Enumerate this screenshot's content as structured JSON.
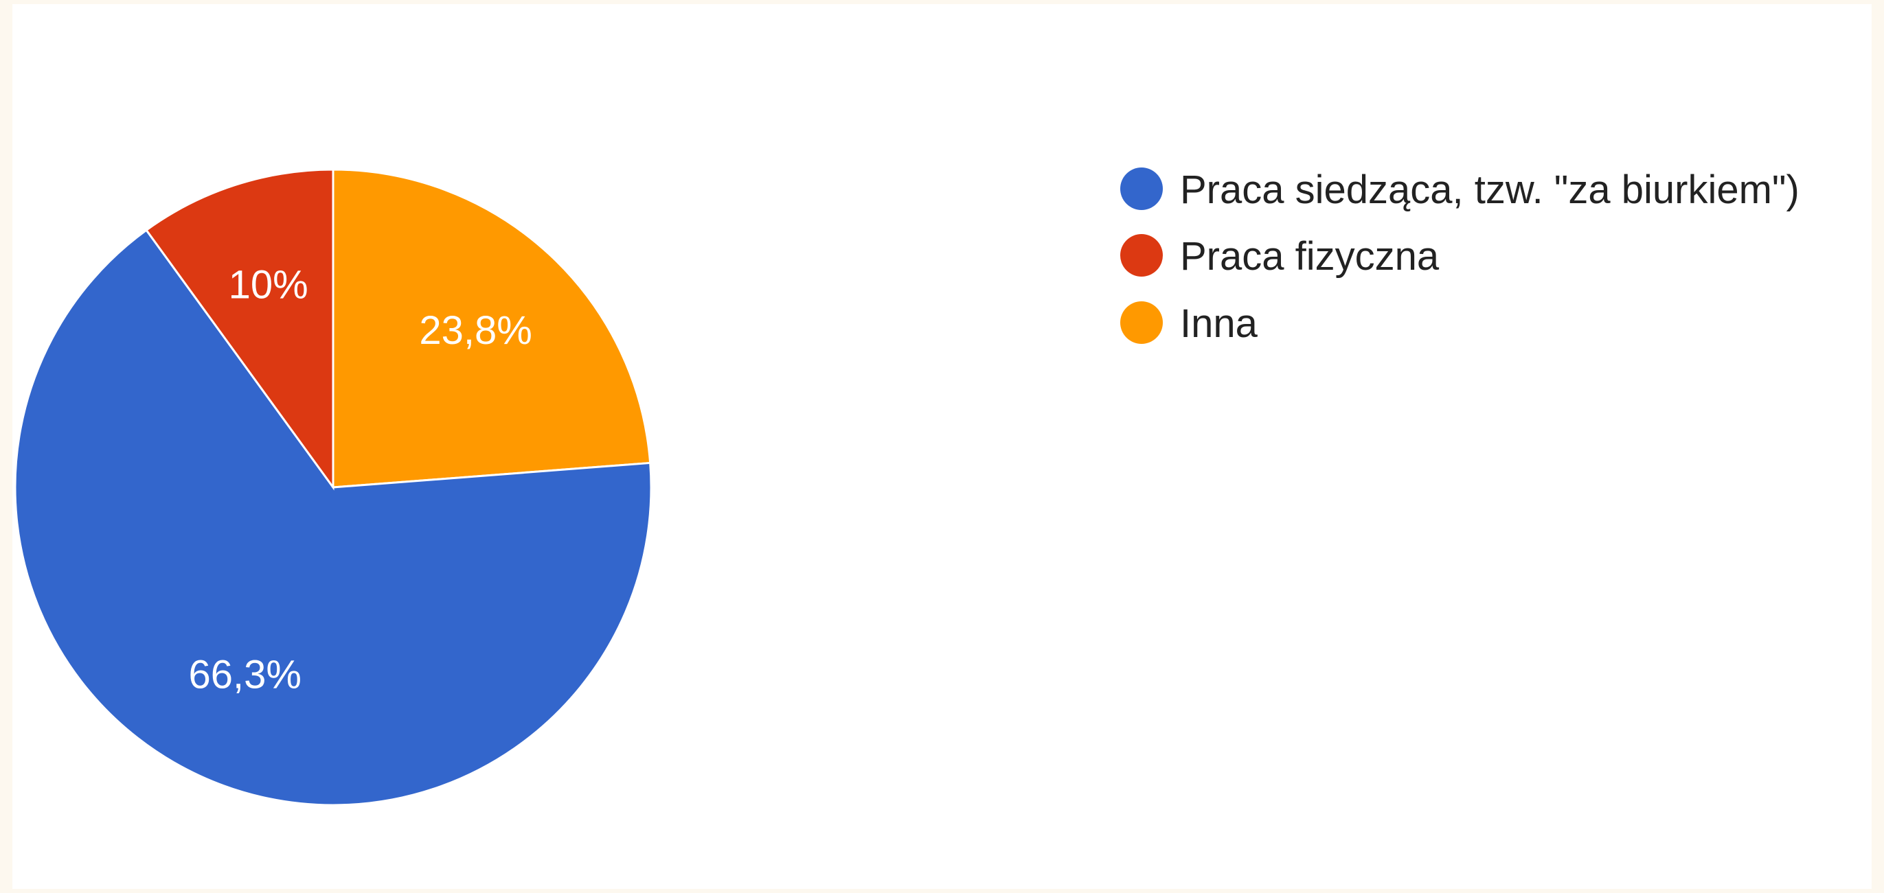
{
  "chart_data": {
    "type": "pie",
    "start": "12 o'clock, clockwise",
    "categories": [
      "Praca siedząca, tzw. \"za biurkiem\")",
      "Praca fizyczna",
      "Inna"
    ],
    "values": [
      66.3,
      10,
      23.8
    ],
    "slice_labels": [
      "66,3%",
      "10%",
      "23,8%"
    ],
    "slice_order_clockwise_from_top": [
      2,
      0,
      1
    ],
    "colors": [
      "#3366cc",
      "#dc3912",
      "#ff9900"
    ],
    "legend_position": "right",
    "title": "",
    "legend": {
      "entries": [
        {
          "label": "Praca siedząca, tzw. \"za biurkiem\")",
          "color": "#3366cc"
        },
        {
          "label": "Praca fizyczna",
          "color": "#dc3912"
        },
        {
          "label": "Inna",
          "color": "#ff9900"
        }
      ]
    }
  }
}
